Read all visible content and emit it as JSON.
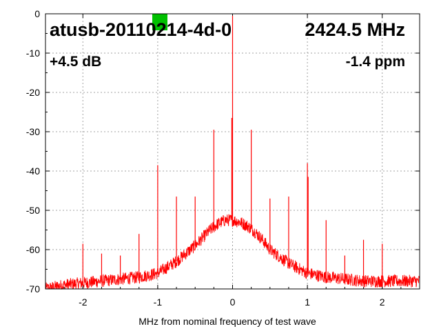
{
  "chart_data": {
    "type": "line",
    "title": "",
    "xlabel": "MHz from nominal frequency of test wave",
    "ylabel": "",
    "xlim": [
      -2.5,
      2.5
    ],
    "ylim": [
      -70,
      0
    ],
    "grid": true,
    "x_ticks": [
      -2,
      -1,
      0,
      1,
      2
    ],
    "y_ticks": [
      0,
      -10,
      -20,
      -30,
      -40,
      -50,
      -60,
      -70
    ],
    "x_tick_labels": [
      "-2",
      "-1",
      "0",
      "1",
      "2"
    ],
    "y_tick_labels": [
      "0",
      "-10",
      "-20",
      "-30",
      "-40",
      "-50",
      "-60",
      "-70"
    ],
    "series": [
      {
        "color": "#ff0000",
        "noise_floor": {
          "x": [
            -2.5,
            -2.25,
            -2.0,
            -1.75,
            -1.5,
            -1.25,
            -1.0,
            -0.75,
            -0.5,
            -0.4,
            -0.3,
            -0.2,
            -0.1,
            0.0,
            0.1,
            0.2,
            0.3,
            0.4,
            0.5,
            0.75,
            1.0,
            1.25,
            1.5,
            1.75,
            2.0,
            2.25,
            2.5
          ],
          "y": [
            -70,
            -69,
            -68.5,
            -68,
            -67.5,
            -67,
            -66,
            -63,
            -59,
            -57,
            -55,
            -53.5,
            -52.5,
            -52.5,
            -53,
            -54,
            -55.5,
            -57.5,
            -60,
            -63.5,
            -66,
            -67,
            -67.5,
            -68,
            -68,
            -68,
            -68
          ]
        },
        "spurs": [
          {
            "x": -2.0,
            "y": -58.5
          },
          {
            "x": -1.75,
            "y": -61
          },
          {
            "x": -1.5,
            "y": -61.5
          },
          {
            "x": -1.25,
            "y": -56
          },
          {
            "x": -1.0,
            "y": -38.5
          },
          {
            "x": -0.75,
            "y": -46.5
          },
          {
            "x": -0.5,
            "y": -46.5
          },
          {
            "x": -0.25,
            "y": -29.5
          },
          {
            "x": 0.0,
            "y": -0.5
          },
          {
            "x": -0.01,
            "y": -26.5
          },
          {
            "x": 0.25,
            "y": -29.5
          },
          {
            "x": 0.5,
            "y": -47
          },
          {
            "x": 0.75,
            "y": -46.5
          },
          {
            "x": 1.0,
            "y": -38
          },
          {
            "x": 1.01,
            "y": -41.5
          },
          {
            "x": 1.25,
            "y": -52.5
          },
          {
            "x": 1.5,
            "y": -61.5
          },
          {
            "x": 1.75,
            "y": -57.5
          },
          {
            "x": 2.0,
            "y": -58.5
          }
        ]
      }
    ]
  },
  "annotations": {
    "device": "atusb-20110214-4d-0",
    "frequency": "2424.5 MHz",
    "gain": "+4.5 dB",
    "offset": "-1.4 ppm"
  },
  "colors": {
    "trace": "#ff0000",
    "marker": "#00c000",
    "grid": "#a0a0a0"
  }
}
